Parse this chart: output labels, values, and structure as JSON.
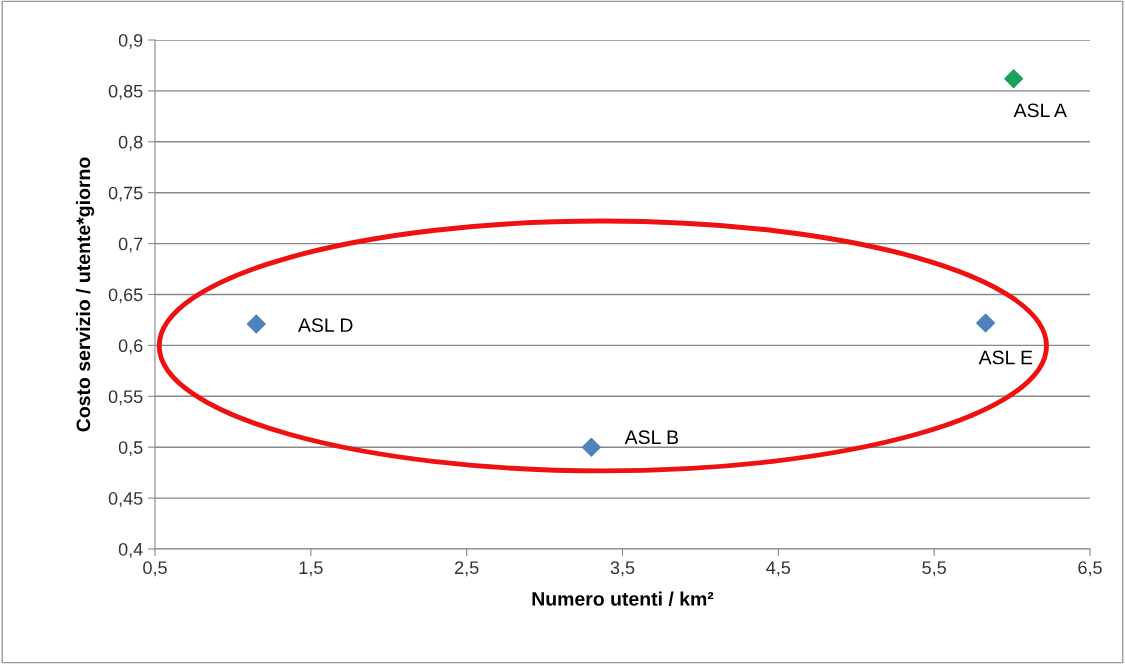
{
  "chart_data": {
    "type": "scatter",
    "xlabel": "Numero utenti / km²",
    "ylabel": "Costo servizio / utente*giorno",
    "x": [
      6.01,
      1.15,
      5.83,
      3.3
    ],
    "series": [
      {
        "values": [
          0.862,
          0.621,
          0.622,
          0.5
        ],
        "colors": [
          "#1aa15a",
          "#4f81bd",
          "#4f81bd",
          "#4f81bd"
        ]
      }
    ],
    "annotations": [
      {
        "text": "ASL A",
        "x": 6.01,
        "y": 0.862
      },
      {
        "text": "ASL D",
        "x": 1.15,
        "y": 0.621
      },
      {
        "text": "ASL E",
        "x": 5.83,
        "y": 0.622
      },
      {
        "text": "ASL B",
        "x": 3.3,
        "y": 0.5
      }
    ],
    "xlim": [
      0.5,
      6.5
    ],
    "xticks": [
      {
        "value": 0.5,
        "label": "0,5"
      },
      {
        "value": 1.5,
        "label": "1,5"
      },
      {
        "value": 2.5,
        "label": "2,5"
      },
      {
        "value": 3.5,
        "label": "3,5"
      },
      {
        "value": 4.5,
        "label": "4,5"
      },
      {
        "value": 5.5,
        "label": "5,5"
      },
      {
        "value": 6.5,
        "label": "6,5"
      }
    ],
    "ylim": [
      0.4,
      0.9
    ],
    "yticks": [
      {
        "value": 0.4,
        "label": "0,4"
      },
      {
        "value": 0.45,
        "label": "0,45"
      },
      {
        "value": 0.5,
        "label": "0,5"
      },
      {
        "value": 0.55,
        "label": "0,55"
      },
      {
        "value": 0.6,
        "label": "0,6"
      },
      {
        "value": 0.65,
        "label": "0,65"
      },
      {
        "value": 0.7,
        "label": "0,7"
      },
      {
        "value": 0.75,
        "label": "0,75"
      },
      {
        "value": 0.8,
        "label": "0,8"
      },
      {
        "value": 0.85,
        "label": "0,85"
      },
      {
        "value": 0.9,
        "label": "0,9"
      }
    ],
    "grid": "y",
    "marker": "diamond"
  }
}
